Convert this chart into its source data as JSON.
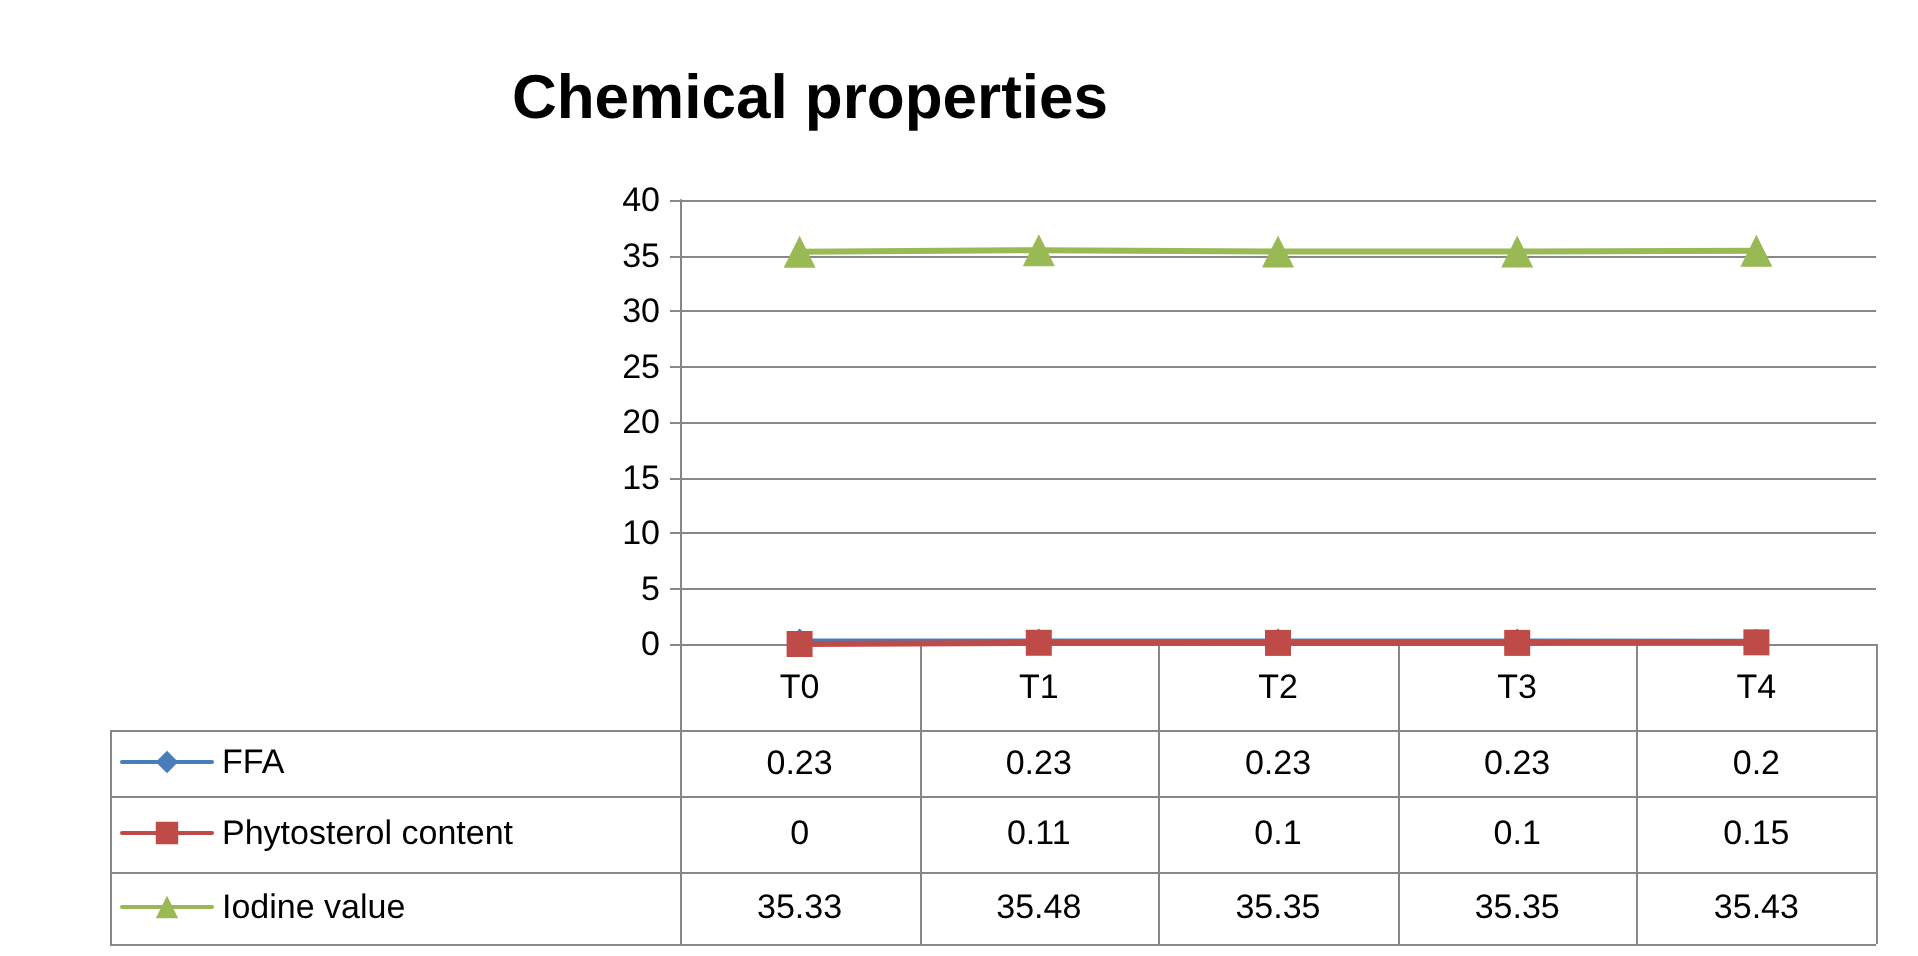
{
  "chart_data": {
    "type": "line",
    "title": "Chemical properties",
    "categories": [
      "T0",
      "T1",
      "T2",
      "T3",
      "T4"
    ],
    "series": [
      {
        "name": "FFA",
        "color": "#4a7ebb",
        "marker": "diamond",
        "values": [
          0.23,
          0.23,
          0.23,
          0.23,
          0.2
        ]
      },
      {
        "name": "Phytosterol content",
        "color": "#be4b48",
        "marker": "square",
        "values": [
          0,
          0.11,
          0.1,
          0.1,
          0.15
        ]
      },
      {
        "name": "Iodine value",
        "color": "#98b954",
        "marker": "triangle",
        "values": [
          35.33,
          35.48,
          35.35,
          35.35,
          35.43
        ]
      }
    ],
    "ylim": [
      0,
      40
    ],
    "yticks": [
      0,
      5,
      10,
      15,
      20,
      25,
      30,
      35,
      40
    ],
    "grid": "y",
    "legend": "bottom left",
    "data_labels": true
  }
}
